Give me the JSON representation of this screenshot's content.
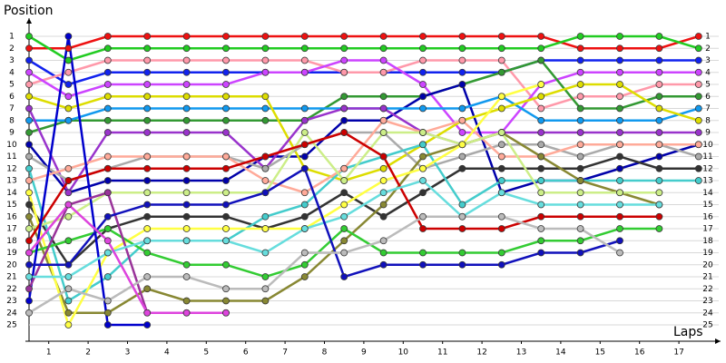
{
  "chart_data": {
    "type": "line",
    "y_label": "Position",
    "x_label": "Laps",
    "x": [
      0,
      1,
      2,
      3,
      4,
      5,
      6,
      7,
      8,
      9,
      10,
      11,
      12,
      13,
      14,
      15,
      16,
      17
    ],
    "xlim": [
      0,
      17.5
    ],
    "ylim": [
      0,
      26
    ],
    "y_inverted": true,
    "grid": true,
    "xticks": [
      {
        "value": 0.5,
        "label": "1"
      },
      {
        "value": 1.5,
        "label": "2"
      },
      {
        "value": 2.5,
        "label": "3"
      },
      {
        "value": 3.5,
        "label": "4"
      },
      {
        "value": 4.5,
        "label": "5"
      },
      {
        "value": 5.5,
        "label": "6"
      },
      {
        "value": 6.5,
        "label": "7"
      },
      {
        "value": 7.5,
        "label": "8"
      },
      {
        "value": 8.5,
        "label": "9"
      },
      {
        "value": 9.5,
        "label": "10"
      },
      {
        "value": 10.5,
        "label": "11"
      },
      {
        "value": 11.5,
        "label": "12"
      },
      {
        "value": 12.5,
        "label": "13"
      },
      {
        "value": 13.5,
        "label": "14"
      },
      {
        "value": 14.5,
        "label": "15"
      },
      {
        "value": 15.5,
        "label": "16"
      },
      {
        "value": 16.5,
        "label": "17"
      }
    ],
    "yticks": [
      1,
      2,
      3,
      4,
      5,
      6,
      7,
      8,
      9,
      10,
      11,
      12,
      13,
      14,
      15,
      16,
      17,
      18,
      19,
      20,
      21,
      22,
      23,
      24,
      25
    ],
    "series": [
      {
        "color": "#ee1111",
        "values": [
          2,
          2,
          1,
          1,
          1,
          1,
          1,
          1,
          1,
          1,
          1,
          1,
          1,
          1,
          2,
          2,
          2,
          1
        ]
      },
      {
        "color": "#22cc22",
        "values": [
          1,
          3,
          2,
          2,
          2,
          2,
          2,
          2,
          2,
          2,
          2,
          2,
          2,
          2,
          1,
          1,
          1,
          2
        ]
      },
      {
        "color": "#1122ee",
        "values": [
          3,
          5,
          4,
          4,
          4,
          4,
          4,
          4,
          4,
          4,
          4,
          4,
          4,
          3,
          3,
          3,
          3,
          3
        ]
      },
      {
        "color": "#ff99aa",
        "values": [
          5,
          4,
          3,
          3,
          3,
          3,
          3,
          3,
          4,
          4,
          3,
          3,
          3,
          7,
          6,
          6,
          5,
          5
        ]
      },
      {
        "color": "#cc44ff",
        "values": [
          4,
          6,
          5,
          5,
          5,
          5,
          4,
          4,
          3,
          3,
          5,
          9,
          9,
          5,
          4,
          4,
          4,
          4
        ]
      },
      {
        "color": "#339933",
        "values": [
          9,
          8,
          8,
          8,
          8,
          8,
          8,
          8,
          6,
          6,
          6,
          5,
          4,
          3,
          7,
          7,
          6,
          6
        ]
      },
      {
        "color": "#0000aa",
        "values": [
          10,
          14,
          13,
          13,
          13,
          13,
          11,
          11,
          8,
          8,
          6,
          5,
          14,
          13,
          13,
          12,
          11,
          10
        ]
      },
      {
        "color": "#1199ee",
        "values": [
          8,
          8,
          7,
          7,
          7,
          7,
          7,
          7,
          7,
          7,
          7,
          7,
          6,
          8,
          8,
          8,
          8,
          7
        ]
      },
      {
        "color": "#dddd00",
        "values": [
          6,
          7,
          6,
          6,
          6,
          6,
          6,
          12,
          13,
          12,
          10,
          8,
          7,
          6,
          5,
          5,
          7,
          8
        ]
      },
      {
        "color": "#9933cc",
        "values": [
          7,
          14,
          9,
          9,
          9,
          9,
          12,
          8,
          7,
          7,
          9,
          10,
          9,
          9,
          9,
          9,
          9,
          9
        ]
      },
      {
        "color": "#aaaaaa",
        "values": [
          11,
          13,
          12,
          11,
          11,
          11,
          12,
          10,
          9,
          9,
          12,
          11,
          10,
          10,
          11,
          10,
          10,
          11
        ]
      },
      {
        "color": "#333333",
        "values": [
          15,
          20,
          17,
          16,
          16,
          16,
          17,
          16,
          14,
          16,
          14,
          12,
          12,
          12,
          12,
          11,
          12,
          12
        ]
      },
      {
        "color": "#44cccc",
        "values": [
          12,
          23,
          21,
          18,
          18,
          18,
          16,
          15,
          12,
          11,
          10,
          15,
          13,
          13,
          13,
          13,
          13,
          13
        ]
      },
      {
        "color": "#ffaa99",
        "values": [
          13,
          12,
          11,
          11,
          11,
          11,
          13,
          14,
          12,
          8,
          9,
          8,
          11,
          11,
          10,
          10,
          10,
          10
        ]
      },
      {
        "color": "#888833",
        "values": [
          16,
          24,
          24,
          22,
          23,
          23,
          23,
          21,
          18,
          15,
          11,
          10,
          9,
          11,
          13,
          14,
          15,
          null
        ]
      },
      {
        "color": "#ccee88",
        "values": [
          17,
          16,
          14,
          14,
          14,
          14,
          14,
          9,
          13,
          9,
          9,
          10,
          9,
          14,
          14,
          14,
          14,
          null
        ]
      },
      {
        "color": "#ffff44",
        "values": [
          14,
          25,
          19,
          17,
          17,
          17,
          17,
          17,
          15,
          13,
          12,
          10,
          6,
          5,
          null,
          null,
          null,
          null
        ]
      },
      {
        "color": "#cc0000",
        "values": [
          18,
          13,
          12,
          12,
          12,
          12,
          11,
          10,
          9,
          11,
          17,
          17,
          17,
          16,
          16,
          16,
          16,
          null
        ]
      },
      {
        "color": "#33cc33",
        "values": [
          19,
          18,
          17,
          19,
          20,
          20,
          21,
          20,
          17,
          19,
          19,
          19,
          19,
          18,
          18,
          17,
          17,
          null
        ]
      },
      {
        "color": "#0000cc",
        "values": [
          23,
          1,
          25,
          25,
          null,
          null,
          null,
          null,
          null,
          null,
          null,
          null,
          null,
          null,
          null,
          null,
          null,
          null
        ]
      },
      {
        "color": "#993399",
        "values": [
          22,
          15,
          14,
          24,
          24,
          24,
          null,
          null,
          null,
          null,
          null,
          null,
          null,
          null,
          null,
          null,
          null,
          null
        ]
      },
      {
        "color": "#66dddd",
        "values": [
          21,
          21,
          19,
          18,
          18,
          18,
          19,
          17,
          16,
          14,
          13,
          16,
          14,
          15,
          15,
          15,
          15,
          null
        ]
      },
      {
        "color": "#1111bb",
        "values": [
          20,
          20,
          16,
          15,
          15,
          15,
          14,
          12,
          21,
          20,
          20,
          20,
          20,
          19,
          19,
          18,
          null,
          null
        ]
      },
      {
        "color": "#bbbbbb",
        "values": [
          24,
          22,
          23,
          21,
          21,
          22,
          22,
          19,
          19,
          18,
          16,
          16,
          16,
          17,
          17,
          19,
          null,
          null
        ]
      },
      {
        "color": "#dd44dd",
        "values": [
          19,
          15,
          18,
          24,
          24,
          24,
          null,
          null,
          null,
          null,
          null,
          null,
          null,
          null,
          null,
          null,
          null,
          null
        ]
      }
    ]
  }
}
